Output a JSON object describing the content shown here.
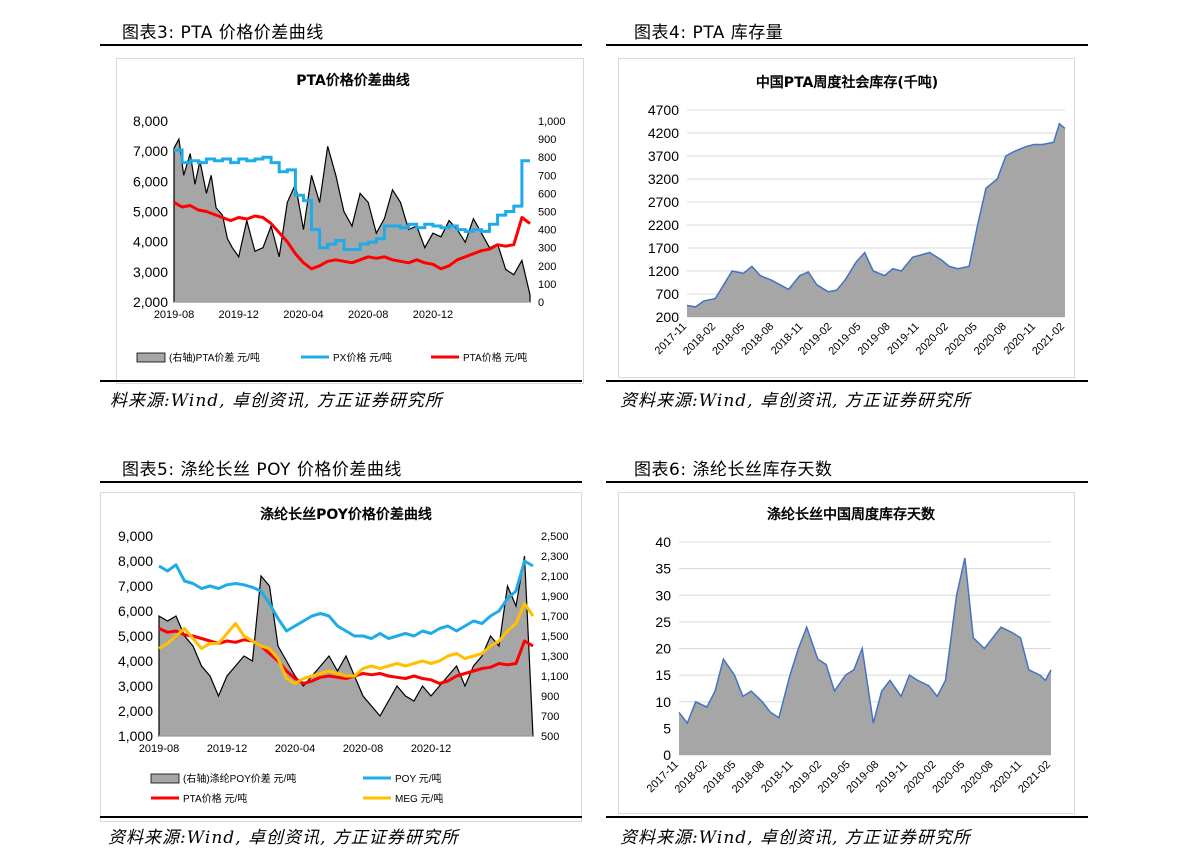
{
  "figures": [
    {
      "title": "图表3:  PTA 价格价差曲线",
      "source": "料来源:Wind, 卓创资讯, 方正证券研究所"
    },
    {
      "title": "图表4:  PTA 库存量",
      "source": "资料来源:Wind, 卓创资讯, 方正证券研究所"
    },
    {
      "title": "图表5:  涤纶长丝 POY 价格价差曲线",
      "source": "资料来源:Wind, 卓创资讯, 方正证券研究所"
    },
    {
      "title": "图表6:  涤纶长丝库存天数",
      "source": "资料来源:Wind, 卓创资讯, 方正证券研究所"
    }
  ],
  "chart_data": [
    {
      "type": "line",
      "title": "PTA价格价差曲线",
      "x_ticks": [
        "2019-08",
        "2019-12",
        "2020-04",
        "2020-08",
        "2020-12"
      ],
      "y_left_ticks": [
        "8,000",
        "7,000",
        "6,000",
        "5,000",
        "4,000",
        "3,000",
        "2,000"
      ],
      "y_right_ticks": [
        "1,000",
        "900",
        "800",
        "700",
        "600",
        "500",
        "400",
        "300",
        "200",
        "100",
        "0"
      ],
      "ylim_left": [
        2000,
        8000
      ],
      "ylim_right": [
        0,
        1000
      ],
      "legend_position": "bottom",
      "series": [
        {
          "name": "(右轴)PTA价差  元/吨",
          "axis": "right",
          "style": "area",
          "color": "#a6a6a6",
          "edge": "#000000",
          "t": [
            0,
            0.3,
            0.6,
            1,
            1.3,
            1.6,
            2,
            2.3,
            2.6,
            3,
            3.3,
            3.6,
            4,
            4.5,
            5,
            5.5,
            6,
            6.5,
            7,
            7.5,
            8,
            8.5,
            9,
            9.5,
            10,
            10.5,
            11,
            11.5,
            12,
            12.5,
            13,
            13.5,
            14,
            14.5,
            15,
            15.5,
            16,
            16.5,
            17,
            17.5,
            18,
            18.5,
            19,
            19.5,
            20,
            20.5,
            21,
            21.5,
            22
          ],
          "values": [
            850,
            900,
            700,
            820,
            650,
            780,
            600,
            700,
            520,
            480,
            350,
            300,
            250,
            450,
            280,
            300,
            420,
            250,
            550,
            650,
            400,
            700,
            550,
            860,
            700,
            500,
            420,
            600,
            550,
            380,
            460,
            620,
            550,
            400,
            420,
            300,
            380,
            360,
            450,
            400,
            330,
            460,
            380,
            300,
            320,
            180,
            150,
            230,
            40
          ]
        },
        {
          "name": "PX价格  元/吨",
          "axis": "right",
          "style": "step",
          "color": "#1eabe8",
          "t": [
            0,
            0.5,
            1,
            1.5,
            2,
            2.5,
            3,
            3.5,
            4,
            4.5,
            5,
            5.5,
            6,
            6.5,
            7,
            7.5,
            8,
            8.5,
            9,
            9.5,
            10,
            10.5,
            11,
            11.5,
            12,
            12.5,
            13,
            13.5,
            14,
            14.5,
            15,
            15.5,
            16,
            16.5,
            17,
            17.5,
            18,
            18.5,
            19,
            19.5,
            20,
            20.5,
            21,
            21.5,
            22
          ],
          "values": [
            840,
            770,
            780,
            770,
            790,
            780,
            790,
            770,
            790,
            780,
            790,
            800,
            770,
            720,
            730,
            590,
            560,
            400,
            300,
            320,
            340,
            290,
            290,
            320,
            330,
            350,
            420,
            420,
            410,
            430,
            410,
            430,
            420,
            410,
            420,
            400,
            390,
            400,
            390,
            430,
            480,
            500,
            530,
            780,
            780
          ]
        },
        {
          "name": "PTA价格  元/吨",
          "axis": "left",
          "style": "line",
          "color": "#ff0000",
          "t": [
            0,
            0.5,
            1,
            1.5,
            2,
            2.5,
            3,
            3.5,
            4,
            4.5,
            5,
            5.5,
            6,
            6.5,
            7,
            7.5,
            8,
            8.5,
            9,
            9.5,
            10,
            10.5,
            11,
            11.5,
            12,
            12.5,
            13,
            13.5,
            14,
            14.5,
            15,
            15.5,
            16,
            16.5,
            17,
            17.5,
            18,
            18.5,
            19,
            19.5,
            20,
            20.5,
            21,
            21.5,
            22
          ],
          "values": [
            5300,
            5150,
            5200,
            5050,
            5000,
            4900,
            4800,
            4700,
            4800,
            4750,
            4850,
            4800,
            4600,
            4300,
            4000,
            3600,
            3300,
            3100,
            3200,
            3350,
            3400,
            3350,
            3300,
            3400,
            3500,
            3450,
            3500,
            3400,
            3350,
            3300,
            3400,
            3300,
            3250,
            3100,
            3200,
            3400,
            3500,
            3600,
            3700,
            3750,
            3900,
            3850,
            3900,
            4800,
            4600
          ]
        }
      ]
    },
    {
      "type": "area",
      "title": "中国PTA周度社会库存(千吨)",
      "x_ticks": [
        "2017-11",
        "2018-02",
        "2018-05",
        "2018-08",
        "2018-11",
        "2019-02",
        "2019-05",
        "2019-08",
        "2019-11",
        "2020-02",
        "2020-05",
        "2020-08",
        "2020-11",
        "2021-02"
      ],
      "y_ticks": [
        "4700",
        "4200",
        "3700",
        "3200",
        "2700",
        "2200",
        "1700",
        "1200",
        "700",
        "200"
      ],
      "ylim": [
        200,
        4700
      ],
      "series": [
        {
          "name": "",
          "color": "#a6a6a6",
          "edge": "#4472c4",
          "t": [
            0,
            0.3,
            0.6,
            1,
            1.3,
            1.6,
            2,
            2.3,
            2.6,
            3,
            3.3,
            3.6,
            4,
            4.3,
            4.6,
            5,
            5.3,
            5.6,
            6,
            6.3,
            6.6,
            7,
            7.3,
            7.6,
            8,
            8.3,
            8.6,
            9,
            9.3,
            9.6,
            10,
            10.3,
            10.6,
            11,
            11.3,
            11.6,
            12,
            12.3,
            12.6,
            13,
            13.2,
            13.4
          ],
          "values": [
            450,
            420,
            550,
            600,
            900,
            1200,
            1150,
            1300,
            1100,
            1000,
            900,
            800,
            1100,
            1180,
            900,
            750,
            780,
            1000,
            1400,
            1600,
            1200,
            1100,
            1250,
            1200,
            1500,
            1550,
            1600,
            1450,
            1300,
            1250,
            1300,
            2200,
            3000,
            3200,
            3700,
            3800,
            3900,
            3950,
            3950,
            4000,
            4400,
            4300
          ]
        }
      ]
    },
    {
      "type": "line",
      "title": "涤纶长丝POY价格价差曲线",
      "x_ticks": [
        "2019-08",
        "2019-12",
        "2020-04",
        "2020-08",
        "2020-12"
      ],
      "y_left_ticks": [
        "9,000",
        "8,000",
        "7,000",
        "6,000",
        "5,000",
        "4,000",
        "3,000",
        "2,000",
        "1,000"
      ],
      "y_right_ticks": [
        "2,500",
        "2,300",
        "2,100",
        "1,900",
        "1,700",
        "1,500",
        "1,300",
        "1,100",
        "900",
        "700",
        "500"
      ],
      "ylim_left": [
        1000,
        9000
      ],
      "ylim_right": [
        500,
        2500
      ],
      "legend_position": "bottom",
      "series": [
        {
          "name": "(右轴)涤纶POY价差  元/吨",
          "axis": "right",
          "style": "area",
          "color": "#a6a6a6",
          "edge": "#000000",
          "t": [
            0,
            0.5,
            1,
            1.5,
            2,
            2.5,
            3,
            3.5,
            4,
            4.5,
            5,
            5.5,
            6,
            6.5,
            7,
            7.5,
            8,
            8.5,
            9,
            9.5,
            10,
            10.5,
            11,
            11.5,
            12,
            12.5,
            13,
            13.5,
            14,
            14.5,
            15,
            15.5,
            16,
            16.5,
            17,
            17.5,
            18,
            18.5,
            19,
            19.5,
            20,
            20.5,
            21,
            21.5,
            22
          ],
          "values": [
            1700,
            1650,
            1700,
            1500,
            1400,
            1200,
            1100,
            900,
            1100,
            1200,
            1300,
            1250,
            2100,
            2000,
            1400,
            1250,
            1100,
            1000,
            1100,
            1200,
            1300,
            1150,
            1300,
            1100,
            900,
            800,
            700,
            850,
            1000,
            900,
            850,
            1000,
            900,
            1000,
            1100,
            1200,
            1000,
            1200,
            1300,
            1500,
            1400,
            2000,
            1800,
            2300,
            500
          ]
        },
        {
          "name": "POY  元/吨",
          "axis": "left",
          "style": "line",
          "color": "#1eabe8",
          "t": [
            0,
            0.5,
            1,
            1.5,
            2,
            2.5,
            3,
            3.5,
            4,
            4.5,
            5,
            5.5,
            6,
            6.5,
            7,
            7.5,
            8,
            8.5,
            9,
            9.5,
            10,
            10.5,
            11,
            11.5,
            12,
            12.5,
            13,
            13.5,
            14,
            14.5,
            15,
            15.5,
            16,
            16.5,
            17,
            17.5,
            18,
            18.5,
            19,
            19.5,
            20,
            20.5,
            21,
            21.5,
            22
          ],
          "values": [
            7800,
            7600,
            7850,
            7200,
            7100,
            6900,
            7000,
            6900,
            7050,
            7100,
            7050,
            6950,
            6800,
            6300,
            5700,
            5200,
            5400,
            5600,
            5800,
            5900,
            5800,
            5400,
            5200,
            5000,
            5000,
            4900,
            5100,
            4900,
            5000,
            5100,
            5000,
            5200,
            5100,
            5300,
            5400,
            5200,
            5400,
            5600,
            5500,
            5800,
            6000,
            6500,
            6800,
            8000,
            7800
          ]
        },
        {
          "name": "PTA价格  元/吨",
          "axis": "left",
          "style": "line",
          "color": "#ff0000",
          "t": [
            0,
            0.5,
            1,
            1.5,
            2,
            2.5,
            3,
            3.5,
            4,
            4.5,
            5,
            5.5,
            6,
            6.5,
            7,
            7.5,
            8,
            8.5,
            9,
            9.5,
            10,
            10.5,
            11,
            11.5,
            12,
            12.5,
            13,
            13.5,
            14,
            14.5,
            15,
            15.5,
            16,
            16.5,
            17,
            17.5,
            18,
            18.5,
            19,
            19.5,
            20,
            20.5,
            21,
            21.5,
            22
          ],
          "values": [
            5300,
            5150,
            5200,
            5050,
            5000,
            4900,
            4800,
            4700,
            4800,
            4750,
            4850,
            4800,
            4600,
            4300,
            4000,
            3600,
            3300,
            3100,
            3200,
            3350,
            3400,
            3350,
            3300,
            3400,
            3500,
            3450,
            3500,
            3400,
            3350,
            3300,
            3400,
            3300,
            3250,
            3100,
            3200,
            3400,
            3500,
            3600,
            3700,
            3750,
            3900,
            3850,
            3900,
            4800,
            4600
          ]
        },
        {
          "name": "MEG  元/吨",
          "axis": "left",
          "style": "line",
          "color": "#ffc000",
          "t": [
            0,
            0.5,
            1,
            1.5,
            2,
            2.5,
            3,
            3.5,
            4,
            4.5,
            5,
            5.5,
            6,
            6.5,
            7,
            7.5,
            8,
            8.5,
            9,
            9.5,
            10,
            10.5,
            11,
            11.5,
            12,
            12.5,
            13,
            13.5,
            14,
            14.5,
            15,
            15.5,
            16,
            16.5,
            17,
            17.5,
            18,
            18.5,
            19,
            19.5,
            20,
            20.5,
            21,
            21.5,
            22
          ],
          "values": [
            4500,
            4700,
            5000,
            5300,
            4900,
            4500,
            4700,
            4700,
            5100,
            5500,
            5000,
            4800,
            4600,
            4500,
            4100,
            3300,
            3100,
            3300,
            3400,
            3500,
            3600,
            3500,
            3400,
            3400,
            3700,
            3800,
            3700,
            3800,
            3900,
            3800,
            3900,
            4000,
            3900,
            4000,
            4200,
            4300,
            4100,
            4200,
            4300,
            4600,
            4800,
            5200,
            5500,
            6300,
            5800
          ]
        }
      ]
    },
    {
      "type": "area",
      "title": "涤纶长丝中国周度库存天数",
      "x_ticks": [
        "2017-11",
        "2018-02",
        "2018-05",
        "2018-08",
        "2018-11",
        "2019-02",
        "2019-05",
        "2019-08",
        "2019-11",
        "2020-02",
        "2020-05",
        "2020-08",
        "2020-11",
        "2021-02"
      ],
      "y_ticks": [
        "40",
        "35",
        "30",
        "25",
        "20",
        "15",
        "10",
        "5",
        "0"
      ],
      "ylim": [
        0,
        40
      ],
      "series": [
        {
          "name": "",
          "color": "#a6a6a6",
          "edge": "#4472c4",
          "t": [
            0,
            0.3,
            0.6,
            1,
            1.3,
            1.6,
            2,
            2.3,
            2.6,
            3,
            3.3,
            3.6,
            4,
            4.3,
            4.6,
            5,
            5.3,
            5.6,
            6,
            6.3,
            6.6,
            7,
            7.3,
            7.6,
            8,
            8.3,
            8.6,
            9,
            9.3,
            9.6,
            10,
            10.3,
            10.6,
            11,
            11.3,
            11.6,
            12,
            12.3,
            12.6,
            13,
            13.2,
            13.4
          ],
          "values": [
            8,
            6,
            10,
            9,
            12,
            18,
            15,
            11,
            12,
            10,
            8,
            7,
            15,
            20,
            24,
            18,
            17,
            12,
            15,
            16,
            20,
            6,
            12,
            14,
            11,
            15,
            14,
            13,
            11,
            14,
            30,
            37,
            22,
            20,
            22,
            24,
            23,
            22,
            16,
            15,
            14,
            16
          ]
        }
      ]
    }
  ]
}
